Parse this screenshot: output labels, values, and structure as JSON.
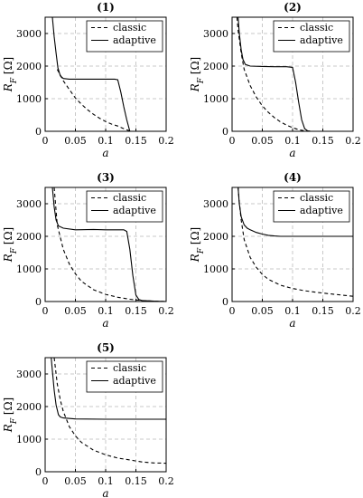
{
  "chart_data": [
    {
      "type": "line",
      "title": "(1)",
      "xlabel": "a",
      "ylabel": "R_F [Ω]",
      "xlim": [
        0,
        0.2
      ],
      "ylim": [
        0,
        3500
      ],
      "xticks": [
        "0",
        "0.05",
        "0.1",
        "0.15",
        "0.2"
      ],
      "yticks": [
        "0",
        "1000",
        "2000",
        "3000"
      ],
      "grid": true,
      "legend_position": "top-right",
      "series": [
        {
          "name": "classic",
          "style": "dashed",
          "x": [
            0.02,
            0.03,
            0.04,
            0.05,
            0.06,
            0.07,
            0.08,
            0.09,
            0.1,
            0.11,
            0.12,
            0.13,
            0.14
          ],
          "y": [
            1900,
            1550,
            1280,
            1020,
            830,
            660,
            520,
            400,
            300,
            220,
            160,
            80,
            10
          ]
        },
        {
          "name": "adaptive",
          "style": "solid",
          "x": [
            0.012,
            0.015,
            0.018,
            0.021,
            0.025,
            0.03,
            0.04,
            0.06,
            0.08,
            0.1,
            0.115,
            0.12,
            0.125,
            0.13,
            0.135,
            0.14
          ],
          "y": [
            3500,
            2900,
            2400,
            1950,
            1700,
            1620,
            1600,
            1600,
            1600,
            1600,
            1600,
            1580,
            1200,
            750,
            350,
            0
          ]
        }
      ]
    },
    {
      "type": "line",
      "title": "(2)",
      "xlabel": "a",
      "ylabel": "R_F [Ω]",
      "xlim": [
        0,
        0.2
      ],
      "ylim": [
        0,
        3500
      ],
      "xticks": [
        "0",
        "0.05",
        "0.1",
        "0.15",
        "0.2"
      ],
      "yticks": [
        "0",
        "1000",
        "2000",
        "3000"
      ],
      "grid": true,
      "legend_position": "top-right",
      "series": [
        {
          "name": "classic",
          "style": "dashed",
          "x": [
            0.008,
            0.01,
            0.015,
            0.02,
            0.03,
            0.04,
            0.05,
            0.06,
            0.07,
            0.08,
            0.09,
            0.1,
            0.11,
            0.12,
            0.13
          ],
          "y": [
            3500,
            3100,
            2400,
            1900,
            1400,
            1050,
            780,
            580,
            420,
            290,
            190,
            110,
            50,
            15,
            0
          ]
        },
        {
          "name": "adaptive",
          "style": "solid",
          "x": [
            0.01,
            0.012,
            0.015,
            0.018,
            0.022,
            0.03,
            0.05,
            0.07,
            0.09,
            0.1,
            0.105,
            0.11,
            0.115,
            0.12,
            0.125,
            0.13
          ],
          "y": [
            3500,
            3000,
            2500,
            2200,
            2050,
            2000,
            1990,
            1980,
            1980,
            1960,
            1500,
            900,
            350,
            80,
            10,
            0
          ]
        }
      ]
    },
    {
      "type": "line",
      "title": "(3)",
      "xlabel": "a",
      "ylabel": "R_F [Ω]",
      "xlim": [
        0,
        0.2
      ],
      "ylim": [
        0,
        3500
      ],
      "xticks": [
        "0",
        "0.05",
        "0.1",
        "0.15",
        "0.2"
      ],
      "yticks": [
        "0",
        "1000",
        "2000",
        "3000"
      ],
      "grid": true,
      "legend_position": "top-right",
      "series": [
        {
          "name": "classic",
          "style": "dashed",
          "x": [
            0.015,
            0.02,
            0.03,
            0.04,
            0.05,
            0.06,
            0.08,
            0.1,
            0.12,
            0.14,
            0.16,
            0.18,
            0.2
          ],
          "y": [
            3500,
            2350,
            1600,
            1150,
            850,
            620,
            360,
            220,
            130,
            70,
            30,
            10,
            0
          ]
        },
        {
          "name": "adaptive",
          "style": "solid",
          "x": [
            0.012,
            0.015,
            0.018,
            0.022,
            0.03,
            0.05,
            0.08,
            0.1,
            0.13,
            0.135,
            0.14,
            0.145,
            0.15,
            0.155,
            0.16,
            0.18,
            0.2
          ],
          "y": [
            3500,
            2900,
            2500,
            2320,
            2250,
            2200,
            2210,
            2200,
            2200,
            2150,
            1600,
            800,
            200,
            60,
            30,
            10,
            0
          ]
        }
      ]
    },
    {
      "type": "line",
      "title": "(4)",
      "xlabel": "a",
      "ylabel": "R_F [Ω]",
      "xlim": [
        0,
        0.2
      ],
      "ylim": [
        0,
        3500
      ],
      "xticks": [
        "0",
        "0.05",
        "0.1",
        "0.15",
        "0.2"
      ],
      "yticks": [
        "0",
        "1000",
        "2000",
        "3000"
      ],
      "grid": true,
      "legend_position": "top-right",
      "series": [
        {
          "name": "classic",
          "style": "dashed",
          "x": [
            0.01,
            0.012,
            0.015,
            0.02,
            0.03,
            0.04,
            0.05,
            0.06,
            0.08,
            0.1,
            0.12,
            0.14,
            0.16,
            0.18,
            0.2
          ],
          "y": [
            3500,
            3050,
            2500,
            1900,
            1350,
            1050,
            830,
            680,
            500,
            400,
            330,
            280,
            240,
            200,
            160
          ]
        },
        {
          "name": "adaptive",
          "style": "solid",
          "x": [
            0.01,
            0.012,
            0.015,
            0.02,
            0.025,
            0.03,
            0.04,
            0.05,
            0.06,
            0.07,
            0.08,
            0.1,
            0.15,
            0.2
          ],
          "y": [
            3500,
            3000,
            2600,
            2350,
            2250,
            2200,
            2120,
            2070,
            2030,
            2010,
            2000,
            2000,
            2000,
            2000
          ]
        }
      ]
    },
    {
      "type": "line",
      "title": "(5)",
      "xlabel": "a",
      "ylabel": "R_F [Ω]",
      "xlim": [
        0,
        0.2
      ],
      "ylim": [
        0,
        3500
      ],
      "xticks": [
        "0",
        "0.05",
        "0.1",
        "0.15",
        "0.2"
      ],
      "yticks": [
        "0",
        "1000",
        "2000",
        "3000"
      ],
      "grid": true,
      "legend_position": "top-right",
      "series": [
        {
          "name": "classic",
          "style": "dashed",
          "x": [
            0.015,
            0.02,
            0.025,
            0.03,
            0.04,
            0.05,
            0.06,
            0.08,
            0.1,
            0.12,
            0.14,
            0.16,
            0.18,
            0.2
          ],
          "y": [
            3500,
            2700,
            2200,
            1850,
            1380,
            1100,
            900,
            660,
            520,
            420,
            360,
            300,
            270,
            260
          ]
        },
        {
          "name": "adaptive",
          "style": "solid",
          "x": [
            0.01,
            0.012,
            0.015,
            0.018,
            0.022,
            0.025,
            0.03,
            0.05,
            0.1,
            0.15,
            0.2
          ],
          "y": [
            3500,
            3100,
            2500,
            2050,
            1750,
            1680,
            1650,
            1620,
            1610,
            1610,
            1610
          ]
        }
      ]
    }
  ]
}
